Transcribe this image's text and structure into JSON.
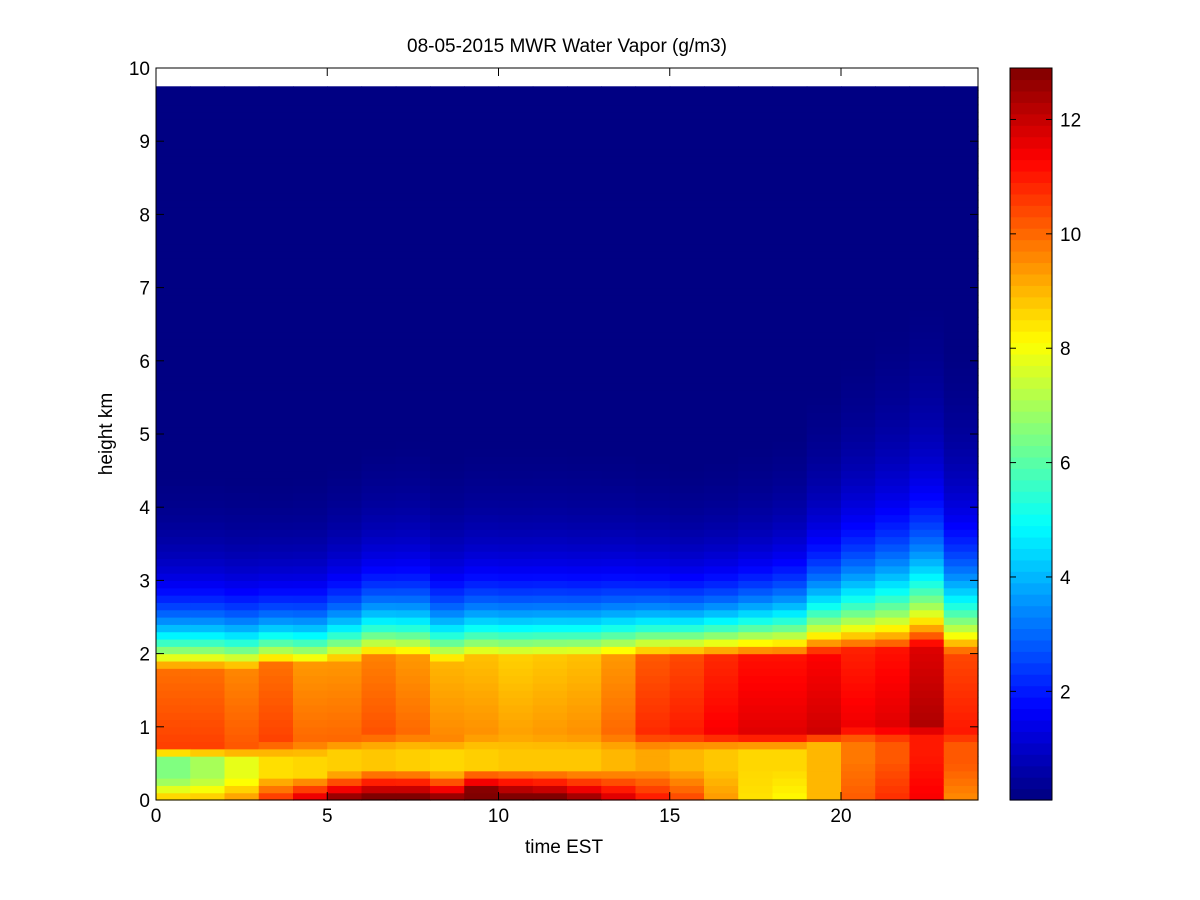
{
  "chart_data": {
    "type": "heatmap",
    "title": "08-05-2015 MWR Water Vapor (g/m3)",
    "xlabel": "time EST",
    "ylabel": "height km",
    "xlim": [
      0,
      24
    ],
    "ylim": [
      0,
      10
    ],
    "xticks": [
      0,
      5,
      10,
      15,
      20
    ],
    "yticks": [
      0,
      1,
      2,
      3,
      4,
      5,
      6,
      7,
      8,
      9,
      10
    ],
    "colorbar": {
      "colormap": "jet",
      "clim": [
        0.1,
        12.9
      ],
      "ticks": [
        2,
        4,
        6,
        8,
        10,
        12
      ]
    },
    "time_step_hours": 1,
    "height_step_km": 0.1,
    "data_top_km": 9.75,
    "columns": [
      {
        "t": 0,
        "s": 1.0,
        "h": 0.0,
        "low": 6.5,
        "peak": 10.5,
        "sfc": 9.0
      },
      {
        "t": 1,
        "s": 1.0,
        "h": 0.0,
        "low": 7.0,
        "peak": 10.5,
        "sfc": 9.0
      },
      {
        "t": 2,
        "s": 0.98,
        "h": 0.0,
        "low": 7.8,
        "peak": 10.2,
        "sfc": 9.5
      },
      {
        "t": 3,
        "s": 0.95,
        "h": 0.05,
        "low": 8.5,
        "peak": 10.5,
        "sfc": 10.5
      },
      {
        "t": 4,
        "s": 0.98,
        "h": 0.05,
        "low": 8.6,
        "peak": 10.0,
        "sfc": 11.5
      },
      {
        "t": 5,
        "s": 1.05,
        "h": 0.1,
        "low": 8.7,
        "peak": 10.0,
        "sfc": 12.0
      },
      {
        "t": 6,
        "s": 1.12,
        "h": 0.15,
        "low": 8.8,
        "peak": 10.3,
        "sfc": 12.0
      },
      {
        "t": 7,
        "s": 1.15,
        "h": 0.15,
        "low": 8.7,
        "peak": 10.0,
        "sfc": 12.0
      },
      {
        "t": 8,
        "s": 1.08,
        "h": 0.1,
        "low": 8.6,
        "peak": 9.6,
        "sfc": 12.0
      },
      {
        "t": 9,
        "s": 1.12,
        "h": 0.15,
        "low": 8.7,
        "peak": 9.5,
        "sfc": 12.8
      },
      {
        "t": 10,
        "s": 1.12,
        "h": 0.15,
        "low": 8.8,
        "peak": 9.3,
        "sfc": 12.2
      },
      {
        "t": 11,
        "s": 1.12,
        "h": 0.15,
        "low": 8.8,
        "peak": 9.4,
        "sfc": 12.0
      },
      {
        "t": 12,
        "s": 1.1,
        "h": 0.15,
        "low": 8.8,
        "peak": 9.5,
        "sfc": 11.5
      },
      {
        "t": 13,
        "s": 1.08,
        "h": 0.15,
        "low": 9.0,
        "peak": 10.0,
        "sfc": 11.0
      },
      {
        "t": 14,
        "s": 1.02,
        "h": 0.15,
        "low": 9.2,
        "peak": 10.8,
        "sfc": 10.5
      },
      {
        "t": 15,
        "s": 0.98,
        "h": 0.15,
        "low": 9.0,
        "peak": 11.0,
        "sfc": 10.0
      },
      {
        "t": 16,
        "s": 1.0,
        "h": 0.15,
        "low": 8.8,
        "peak": 11.4,
        "sfc": 9.2
      },
      {
        "t": 17,
        "s": 1.05,
        "h": 0.15,
        "low": 8.6,
        "peak": 11.7,
        "sfc": 8.5
      },
      {
        "t": 18,
        "s": 1.12,
        "h": 0.15,
        "low": 8.6,
        "peak": 11.7,
        "sfc": 8.3
      },
      {
        "t": 19,
        "s": 1.3,
        "h": 0.2,
        "low": 9.0,
        "peak": 11.9,
        "sfc": 9.0
      },
      {
        "t": 20,
        "s": 1.48,
        "h": 0.25,
        "low": 9.8,
        "peak": 11.5,
        "sfc": 10.0
      },
      {
        "t": 21,
        "s": 1.62,
        "h": 0.25,
        "low": 10.2,
        "peak": 11.7,
        "sfc": 10.5
      },
      {
        "t": 22,
        "s": 1.72,
        "h": 0.3,
        "low": 11.0,
        "peak": 12.3,
        "sfc": 11.2
      },
      {
        "t": 23,
        "s": 1.55,
        "h": 0.2,
        "low": 10.2,
        "peak": 11.0,
        "sfc": 9.8
      }
    ]
  }
}
